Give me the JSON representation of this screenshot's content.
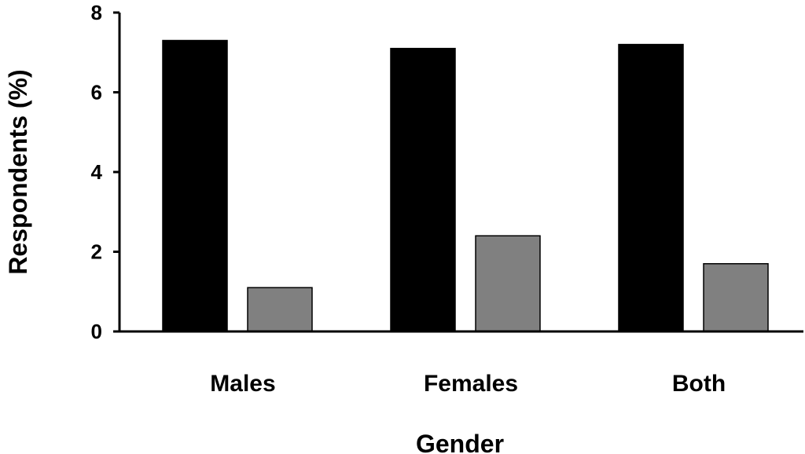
{
  "chart_data": {
    "type": "bar",
    "categories": [
      "Males",
      "Females",
      "Both"
    ],
    "series": [
      {
        "values": [
          7.3,
          7.1,
          7.2
        ],
        "color": "#000000"
      },
      {
        "values": [
          1.1,
          2.4,
          1.7
        ],
        "color": "#808080"
      }
    ],
    "xlabel": "Gender",
    "ylabel": "Respondents (%)",
    "ylim": [
      0,
      8
    ],
    "yticks": [
      "0",
      "2",
      "4",
      "6",
      "8"
    ],
    "grid": false,
    "legend": "none"
  }
}
